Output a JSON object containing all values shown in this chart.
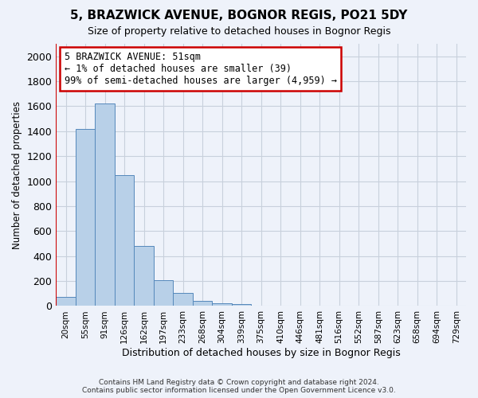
{
  "title_line1": "5, BRAZWICK AVENUE, BOGNOR REGIS, PO21 5DY",
  "title_line2": "Size of property relative to detached houses in Bognor Regis",
  "xlabel": "Distribution of detached houses by size in Bognor Regis",
  "ylabel": "Number of detached properties",
  "categories": [
    "20sqm",
    "55sqm",
    "91sqm",
    "126sqm",
    "162sqm",
    "197sqm",
    "233sqm",
    "268sqm",
    "304sqm",
    "339sqm",
    "375sqm",
    "410sqm",
    "446sqm",
    "481sqm",
    "516sqm",
    "552sqm",
    "587sqm",
    "623sqm",
    "658sqm",
    "694sqm",
    "729sqm"
  ],
  "values": [
    75,
    1420,
    1620,
    1050,
    480,
    205,
    105,
    40,
    25,
    15,
    5,
    0,
    0,
    0,
    0,
    0,
    0,
    0,
    0,
    0,
    0
  ],
  "bar_color": "#b8d0e8",
  "bar_edge_color": "#5588bb",
  "grid_color": "#c8d0dc",
  "annotation_text": "5 BRAZWICK AVENUE: 51sqm\n← 1% of detached houses are smaller (39)\n99% of semi-detached houses are larger (4,959) →",
  "annotation_box_color": "#ffffff",
  "annotation_box_edge_color": "#cc0000",
  "vline_color": "#cc0000",
  "vline_x": -0.5,
  "ylim": [
    0,
    2100
  ],
  "yticks": [
    0,
    200,
    400,
    600,
    800,
    1000,
    1200,
    1400,
    1600,
    1800,
    2000
  ],
  "footer_line1": "Contains HM Land Registry data © Crown copyright and database right 2024.",
  "footer_line2": "Contains public sector information licensed under the Open Government Licence v3.0.",
  "background_color": "#eef2fa",
  "plot_bg_color": "#eef2fa"
}
